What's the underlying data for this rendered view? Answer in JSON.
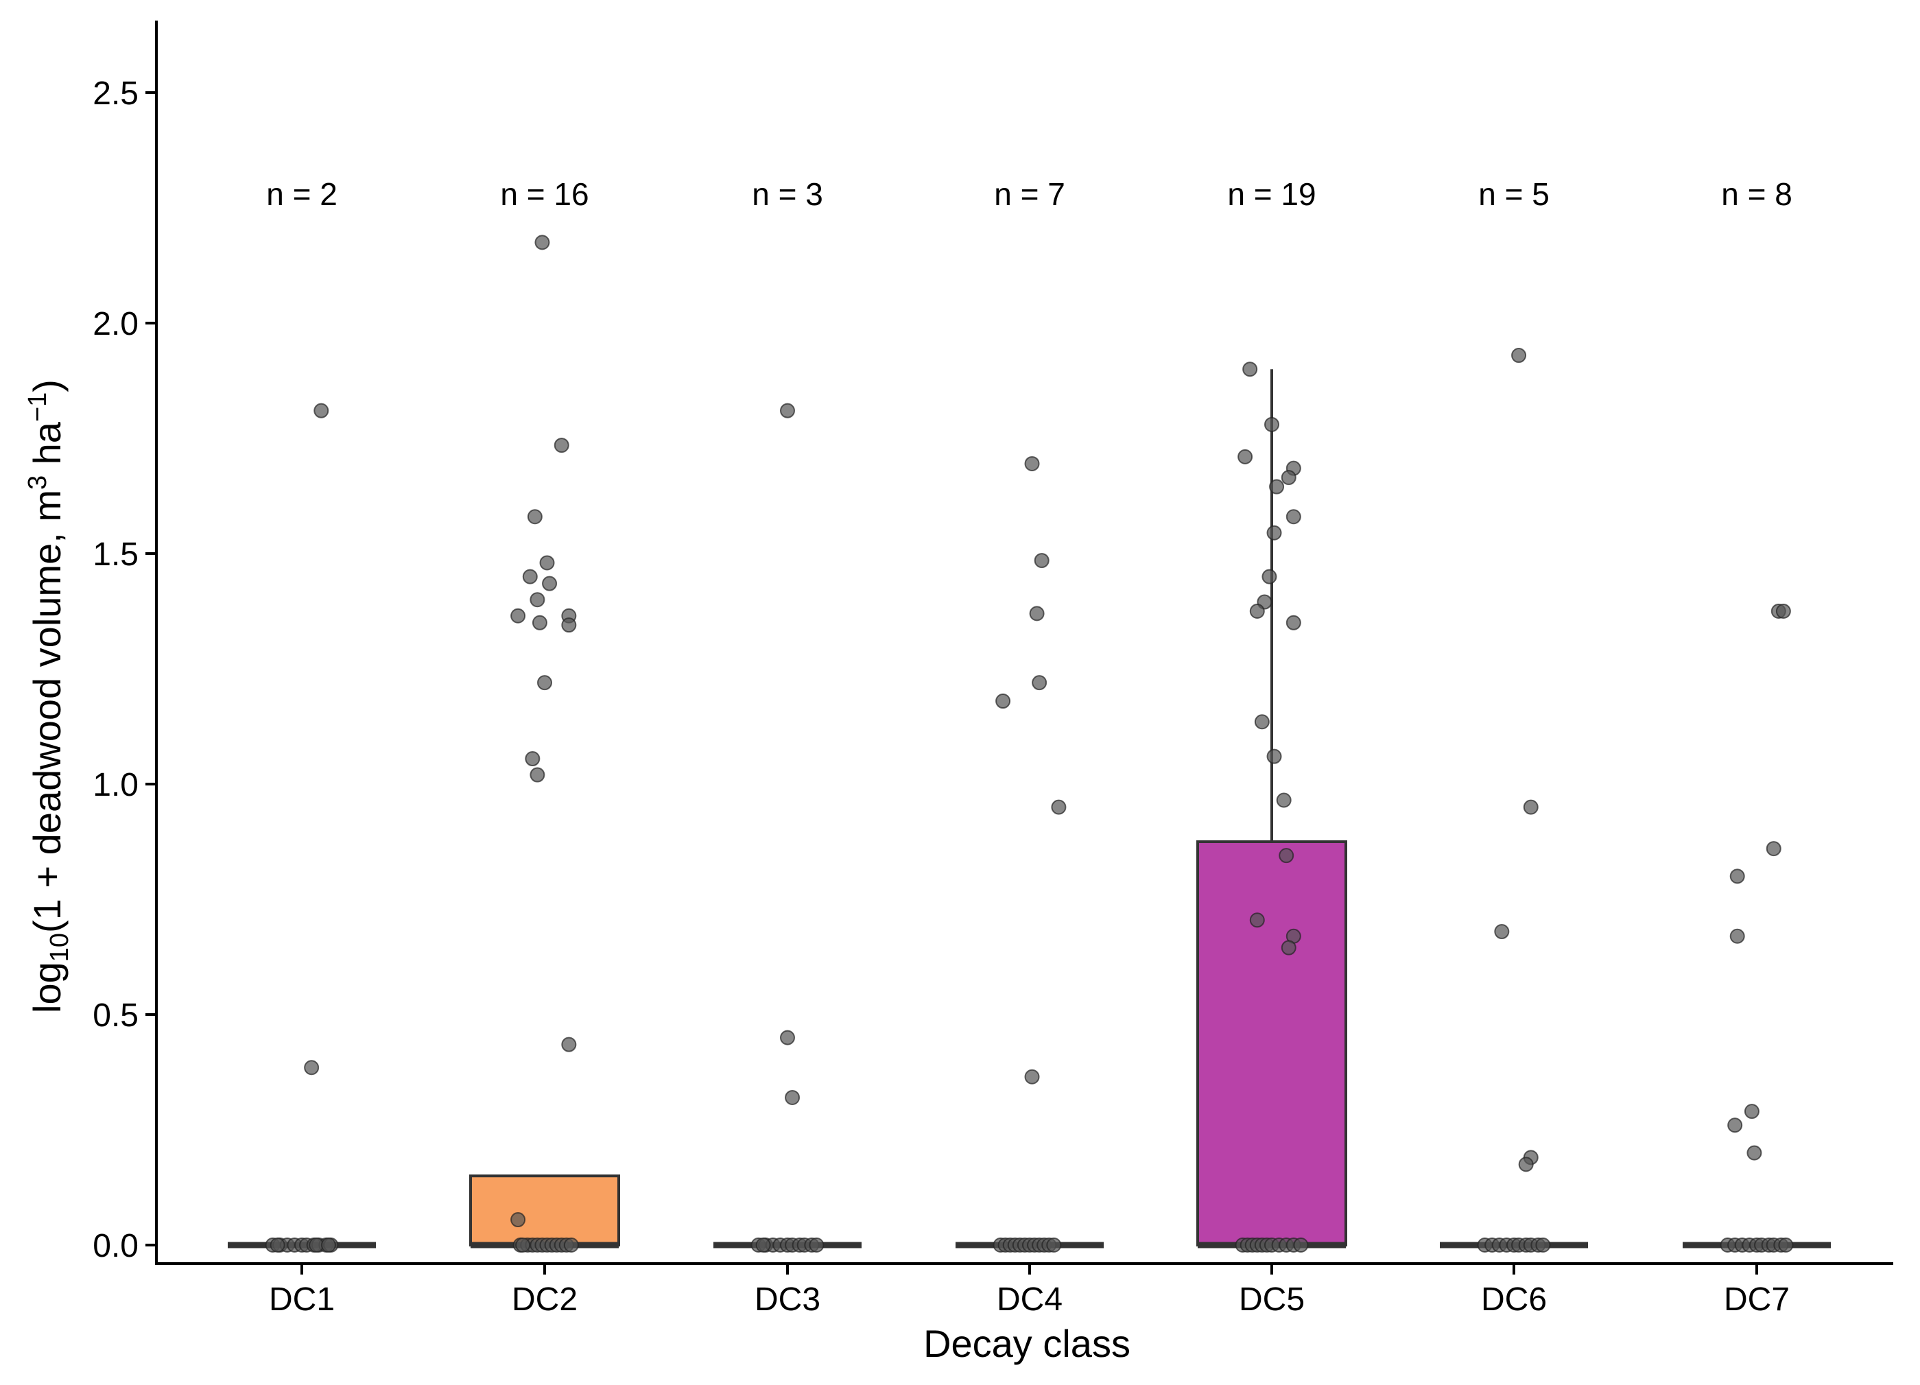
{
  "chart_data": {
    "type": "box",
    "xlabel": "Decay class",
    "ylabel": {
      "prefix": "log",
      "prefix_sub": "10",
      "mid": "(1 + deadwood volume, m",
      "mid_sup": "3",
      "mid2": " ha",
      "mid2_sup": "−1",
      "suffix": ")"
    },
    "ylim": [
      -0.05,
      2.65
    ],
    "yticks": [
      0.0,
      0.5,
      1.0,
      1.5,
      2.0,
      2.5
    ],
    "ytick_labels": [
      "0.0",
      "0.5",
      "1.0",
      "1.5",
      "2.0",
      "2.5"
    ],
    "categories": [
      "DC1",
      "DC2",
      "DC3",
      "DC4",
      "DC5",
      "DC6",
      "DC7"
    ],
    "count_labels": [
      "n = 2",
      "n = 16",
      "n = 3",
      "n = 7",
      "n = 19",
      "n = 5",
      "n = 8"
    ],
    "count_label_y": 2.28,
    "grid": false,
    "legend": "none",
    "colors": {
      "box_outline": "#333333",
      "point": "#555555",
      "axis": "#000000"
    },
    "boxes": [
      {
        "q1": 0.0,
        "median": 0.0,
        "q3": 0.0,
        "whisker_low": 0.0,
        "whisker_high": 0.0,
        "fill": "#ffffff"
      },
      {
        "q1": 0.0,
        "median": 0.0,
        "q3": 0.15,
        "whisker_low": 0.0,
        "whisker_high": 0.15,
        "fill": "#f8a060"
      },
      {
        "q1": 0.0,
        "median": 0.0,
        "q3": 0.0,
        "whisker_low": 0.0,
        "whisker_high": 0.0,
        "fill": "#ffffff"
      },
      {
        "q1": 0.0,
        "median": 0.0,
        "q3": 0.0,
        "whisker_low": 0.0,
        "whisker_high": 0.0,
        "fill": "#ffffff"
      },
      {
        "q1": 0.0,
        "median": 0.0,
        "q3": 0.875,
        "whisker_low": 0.0,
        "whisker_high": 1.9,
        "fill": "#b842a8"
      },
      {
        "q1": 0.0,
        "median": 0.0,
        "q3": 0.0,
        "whisker_low": 0.0,
        "whisker_high": 0.0,
        "fill": "#ffffff"
      },
      {
        "q1": 0.0,
        "median": 0.0,
        "q3": 0.0,
        "whisker_low": 0.0,
        "whisker_high": 0.0,
        "fill": "#ffffff"
      }
    ],
    "points": [
      {
        "values": [
          1.81,
          0.385,
          0,
          0,
          0,
          0,
          0,
          0,
          0,
          0,
          0,
          0,
          0,
          0,
          0
        ],
        "jitter": [
          0.08,
          0.04,
          -0.12,
          -0.09,
          -0.06,
          -0.03,
          0.0,
          0.02,
          0.05,
          0.07,
          0.1,
          0.12,
          -0.1,
          0.06,
          0.11
        ]
      },
      {
        "values": [
          2.175,
          1.735,
          1.58,
          1.48,
          1.45,
          1.435,
          1.4,
          1.365,
          1.365,
          1.35,
          1.345,
          1.22,
          1.055,
          1.02,
          0.435,
          0.055,
          0,
          0,
          0,
          0,
          0,
          0,
          0,
          0,
          0,
          0,
          0,
          0
        ],
        "jitter": [
          -0.01,
          0.07,
          -0.04,
          0.01,
          -0.06,
          0.02,
          -0.03,
          -0.11,
          0.1,
          -0.02,
          0.1,
          0.0,
          -0.05,
          -0.03,
          0.1,
          -0.11,
          -0.1,
          -0.07,
          -0.05,
          -0.03,
          -0.01,
          0.01,
          0.03,
          0.05,
          0.07,
          0.09,
          0.11,
          -0.09
        ]
      },
      {
        "values": [
          1.81,
          0.45,
          0.32,
          0,
          0,
          0,
          0,
          0,
          0,
          0,
          0,
          0,
          0,
          0
        ],
        "jitter": [
          0.0,
          0.0,
          0.02,
          -0.12,
          -0.09,
          -0.06,
          -0.03,
          0.0,
          0.02,
          0.05,
          0.07,
          0.1,
          0.12,
          -0.1
        ]
      },
      {
        "values": [
          1.695,
          1.485,
          1.37,
          1.22,
          1.18,
          0.95,
          0.365,
          0,
          0,
          0,
          0,
          0,
          0,
          0,
          0,
          0,
          0,
          0,
          0
        ],
        "jitter": [
          0.01,
          0.05,
          0.03,
          0.04,
          -0.11,
          0.12,
          0.01,
          -0.12,
          -0.1,
          -0.08,
          -0.06,
          -0.04,
          -0.02,
          0.0,
          0.02,
          0.04,
          0.06,
          0.08,
          0.1
        ]
      },
      {
        "values": [
          1.9,
          1.78,
          1.71,
          1.685,
          1.665,
          1.645,
          1.58,
          1.545,
          1.45,
          1.395,
          1.375,
          1.35,
          1.135,
          1.06,
          0.965,
          0.845,
          0.705,
          0.67,
          0.645,
          0,
          0,
          0,
          0,
          0,
          0,
          0,
          0,
          0,
          0,
          0
        ],
        "jitter": [
          -0.09,
          0.0,
          -0.11,
          0.09,
          0.07,
          0.02,
          0.09,
          0.01,
          -0.01,
          -0.03,
          -0.06,
          0.09,
          -0.04,
          0.01,
          0.05,
          0.06,
          -0.06,
          0.09,
          0.07,
          -0.12,
          -0.1,
          -0.08,
          -0.06,
          -0.04,
          -0.02,
          0.0,
          0.03,
          0.06,
          0.09,
          0.12
        ]
      },
      {
        "values": [
          1.93,
          0.95,
          0.68,
          0.19,
          0.175,
          0,
          0,
          0,
          0,
          0,
          0,
          0,
          0,
          0,
          0
        ],
        "jitter": [
          0.02,
          0.07,
          -0.05,
          0.07,
          0.05,
          -0.12,
          -0.09,
          -0.06,
          -0.03,
          0.0,
          0.02,
          0.05,
          0.07,
          0.1,
          0.12
        ]
      },
      {
        "values": [
          1.375,
          1.375,
          0.86,
          0.8,
          0.67,
          0.29,
          0.26,
          0.2,
          0,
          0,
          0,
          0,
          0,
          0,
          0,
          0,
          0,
          0
        ],
        "jitter": [
          0.09,
          0.11,
          0.07,
          -0.08,
          -0.08,
          -0.02,
          -0.09,
          -0.01,
          -0.12,
          -0.09,
          -0.06,
          -0.03,
          0.0,
          0.02,
          0.05,
          0.07,
          0.1,
          0.12
        ]
      }
    ]
  }
}
